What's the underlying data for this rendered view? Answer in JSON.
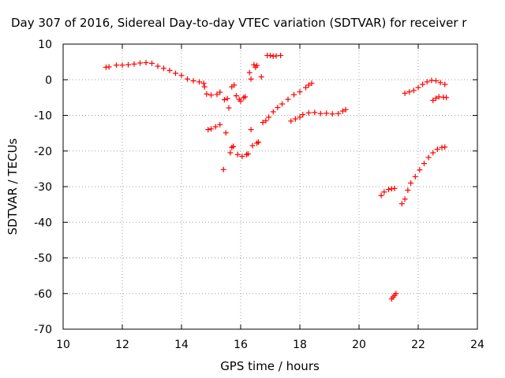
{
  "chart_data": {
    "type": "scatter",
    "title": "Day 307 of 2016, Sidereal Day-to-day VTEC variation (SDTVAR) for receiver r",
    "xlabel": "GPS time / hours",
    "ylabel": "SDTVAR / TECUs",
    "xlim": [
      10,
      24
    ],
    "ylim": [
      -70,
      10
    ],
    "xticks": [
      10,
      12,
      14,
      16,
      18,
      20,
      22,
      24
    ],
    "yticks": [
      10,
      0,
      -10,
      -20,
      -30,
      -40,
      -50,
      -60,
      -70
    ],
    "grid": true,
    "marker": "plus",
    "marker_color": "#ff0000",
    "series": [
      {
        "points": [
          [
            11.45,
            3.5
          ],
          [
            11.55,
            3.6
          ],
          [
            11.8,
            4.1
          ],
          [
            12.0,
            4.1
          ],
          [
            12.2,
            4.2
          ],
          [
            12.4,
            4.4
          ],
          [
            12.6,
            4.7
          ],
          [
            12.8,
            4.8
          ],
          [
            13.0,
            4.6
          ],
          [
            13.2,
            3.8
          ],
          [
            13.4,
            3.2
          ],
          [
            13.6,
            2.6
          ],
          [
            13.8,
            1.8
          ],
          [
            14.0,
            1.2
          ],
          [
            14.2,
            0.2
          ],
          [
            14.4,
            -0.3
          ],
          [
            14.6,
            -0.6
          ],
          [
            14.75,
            -1.0
          ],
          [
            14.78,
            -2.0
          ],
          [
            14.85,
            -4.0
          ],
          [
            15.0,
            -4.3
          ],
          [
            15.2,
            -4.1
          ],
          [
            15.3,
            -3.5
          ],
          [
            14.9,
            -14.0
          ],
          [
            15.0,
            -13.8
          ],
          [
            15.15,
            -13.2
          ],
          [
            15.3,
            -12.6
          ],
          [
            15.42,
            -25.2
          ],
          [
            15.5,
            -14.9
          ],
          [
            15.45,
            -5.6
          ],
          [
            15.55,
            -5.3
          ],
          [
            15.6,
            -7.9
          ],
          [
            15.65,
            -20.5
          ],
          [
            15.7,
            -19.0
          ],
          [
            15.75,
            -18.7
          ],
          [
            15.7,
            -2.0
          ],
          [
            15.78,
            -1.5
          ],
          [
            15.85,
            -4.5
          ],
          [
            15.9,
            -21.0
          ],
          [
            15.95,
            -5.5
          ],
          [
            16.0,
            -6.0
          ],
          [
            16.05,
            -21.5
          ],
          [
            16.1,
            -5.0
          ],
          [
            16.15,
            -4.8
          ],
          [
            16.2,
            -21.0
          ],
          [
            16.25,
            -20.8
          ],
          [
            16.3,
            2.0
          ],
          [
            16.35,
            0.2
          ],
          [
            16.35,
            -14.0
          ],
          [
            16.4,
            -18.5
          ],
          [
            16.5,
            3.5
          ],
          [
            16.45,
            4.2
          ],
          [
            16.55,
            4.0
          ],
          [
            16.55,
            -17.8
          ],
          [
            16.6,
            -17.5
          ],
          [
            16.7,
            0.8
          ],
          [
            16.75,
            -12.0
          ],
          [
            16.85,
            -11.5
          ],
          [
            16.9,
            6.8
          ],
          [
            17.0,
            6.8
          ],
          [
            17.1,
            6.6
          ],
          [
            17.2,
            6.7
          ],
          [
            17.35,
            6.8
          ],
          [
            16.95,
            -10.5
          ],
          [
            17.1,
            -9.0
          ],
          [
            17.25,
            -7.8
          ],
          [
            17.4,
            -6.8
          ],
          [
            17.6,
            -5.5
          ],
          [
            17.8,
            -4.2
          ],
          [
            18.0,
            -3.4
          ],
          [
            18.2,
            -2.2
          ],
          [
            18.3,
            -1.5
          ],
          [
            18.4,
            -1.0
          ],
          [
            17.7,
            -11.6
          ],
          [
            17.85,
            -11.0
          ],
          [
            18.0,
            -10.5
          ],
          [
            18.1,
            -9.8
          ],
          [
            18.3,
            -9.3
          ],
          [
            18.5,
            -9.2
          ],
          [
            18.7,
            -9.5
          ],
          [
            18.9,
            -9.4
          ],
          [
            19.1,
            -9.6
          ],
          [
            19.3,
            -9.5
          ],
          [
            19.45,
            -8.8
          ],
          [
            19.55,
            -8.4
          ],
          [
            20.75,
            -32.5
          ],
          [
            20.85,
            -31.5
          ],
          [
            21.0,
            -30.8
          ],
          [
            21.1,
            -30.6
          ],
          [
            21.2,
            -30.5
          ],
          [
            21.1,
            -61.5
          ],
          [
            21.15,
            -61.0
          ],
          [
            21.2,
            -60.5
          ],
          [
            21.25,
            -60.0
          ],
          [
            21.45,
            -34.8
          ],
          [
            21.55,
            -33.5
          ],
          [
            21.65,
            -31.0
          ],
          [
            21.75,
            -29.0
          ],
          [
            21.9,
            -27.2
          ],
          [
            22.05,
            -25.3
          ],
          [
            22.2,
            -23.5
          ],
          [
            22.35,
            -21.8
          ],
          [
            22.5,
            -20.5
          ],
          [
            22.65,
            -19.5
          ],
          [
            22.8,
            -19.0
          ],
          [
            22.9,
            -18.9
          ],
          [
            21.55,
            -3.8
          ],
          [
            21.7,
            -3.4
          ],
          [
            21.85,
            -3.0
          ],
          [
            22.0,
            -2.2
          ],
          [
            22.15,
            -1.3
          ],
          [
            22.3,
            -0.6
          ],
          [
            22.45,
            -0.2
          ],
          [
            22.6,
            -0.3
          ],
          [
            22.75,
            -0.8
          ],
          [
            22.9,
            -1.3
          ],
          [
            22.5,
            -5.8
          ],
          [
            22.6,
            -5.2
          ],
          [
            22.7,
            -4.8
          ],
          [
            22.85,
            -4.9
          ],
          [
            22.95,
            -5.0
          ]
        ]
      }
    ]
  }
}
